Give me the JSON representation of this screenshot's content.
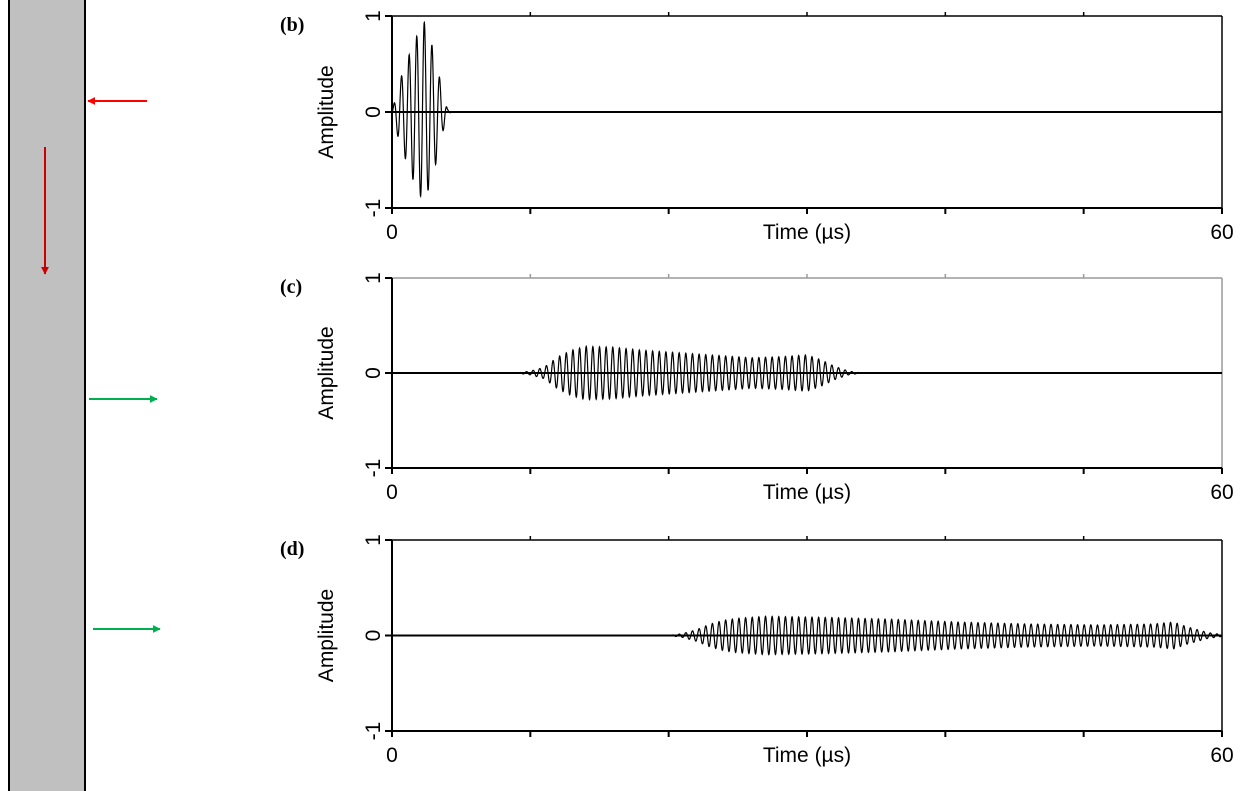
{
  "chart_data": [
    {
      "type": "line",
      "panel_label": "(b)",
      "xlabel": "Time (µs)",
      "ylabel": "Amplitude",
      "xlim": [
        0,
        60
      ],
      "ylim": [
        -1,
        1
      ],
      "x_tick_labels": [
        "0",
        "60"
      ],
      "y_tick_labels": [
        "1",
        "0",
        "-1"
      ],
      "grid": false,
      "series": [
        {
          "color": "#000000",
          "signal": "tone-burst",
          "envelope": [
            [
              0,
              0
            ],
            [
              0.5,
              0.3
            ],
            [
              1.5,
              0.7
            ],
            [
              2.3,
              0.95
            ],
            [
              3.0,
              0.65
            ],
            [
              3.6,
              0.25
            ],
            [
              4.0,
              0.03
            ],
            [
              4.3,
              0
            ],
            [
              60,
              0
            ]
          ],
          "carrier_period": 0.55
        }
      ]
    },
    {
      "type": "line",
      "panel_label": "(c)",
      "xlabel": "Time (µs)",
      "ylabel": "Amplitude",
      "xlim": [
        0,
        60
      ],
      "ylim": [
        -1,
        1
      ],
      "x_tick_labels": [
        "0",
        "60"
      ],
      "y_tick_labels": [
        "1",
        "0",
        "-1"
      ],
      "grid": false,
      "series": [
        {
          "color": "#000000",
          "signal": "tone-burst",
          "envelope": [
            [
              0,
              0
            ],
            [
              9,
              0
            ],
            [
              10,
              0.02
            ],
            [
              11,
              0.06
            ],
            [
              12,
              0.17
            ],
            [
              13,
              0.24
            ],
            [
              14,
              0.28
            ],
            [
              16,
              0.27
            ],
            [
              18,
              0.24
            ],
            [
              21,
              0.21
            ],
            [
              24,
              0.18
            ],
            [
              26,
              0.16
            ],
            [
              28,
              0.17
            ],
            [
              30,
              0.19
            ],
            [
              31,
              0.14
            ],
            [
              32,
              0.07
            ],
            [
              33,
              0.02
            ],
            [
              34,
              0
            ],
            [
              60,
              0
            ]
          ],
          "carrier_period": 0.48
        }
      ]
    },
    {
      "type": "line",
      "panel_label": "(d)",
      "xlabel": "Time (µs)",
      "ylabel": "Amplitude",
      "xlim": [
        0,
        60
      ],
      "ylim": [
        -1,
        1
      ],
      "x_tick_labels": [
        "0",
        "60"
      ],
      "y_tick_labels": [
        "1",
        "0",
        "-1"
      ],
      "grid": false,
      "series": [
        {
          "color": "#000000",
          "signal": "tone-burst",
          "envelope": [
            [
              0,
              0
            ],
            [
              20,
              0
            ],
            [
              21,
              0.02
            ],
            [
              22,
              0.06
            ],
            [
              23,
              0.12
            ],
            [
              24,
              0.16
            ],
            [
              25,
              0.18
            ],
            [
              27,
              0.2
            ],
            [
              31,
              0.19
            ],
            [
              36,
              0.17
            ],
            [
              41,
              0.14
            ],
            [
              46,
              0.12
            ],
            [
              51,
              0.11
            ],
            [
              55,
              0.12
            ],
            [
              56.5,
              0.14
            ],
            [
              57.5,
              0.09
            ],
            [
              59,
              0.03
            ],
            [
              60,
              0.01
            ]
          ],
          "carrier_period": 0.48
        }
      ]
    }
  ],
  "colors": {
    "bar_fill": "#c0c0c0",
    "bar_stroke": "#000000",
    "incident_arrow": "#ff0000",
    "propagation_arrow": "#cc0000",
    "receiver_arrow": "#00b050"
  }
}
